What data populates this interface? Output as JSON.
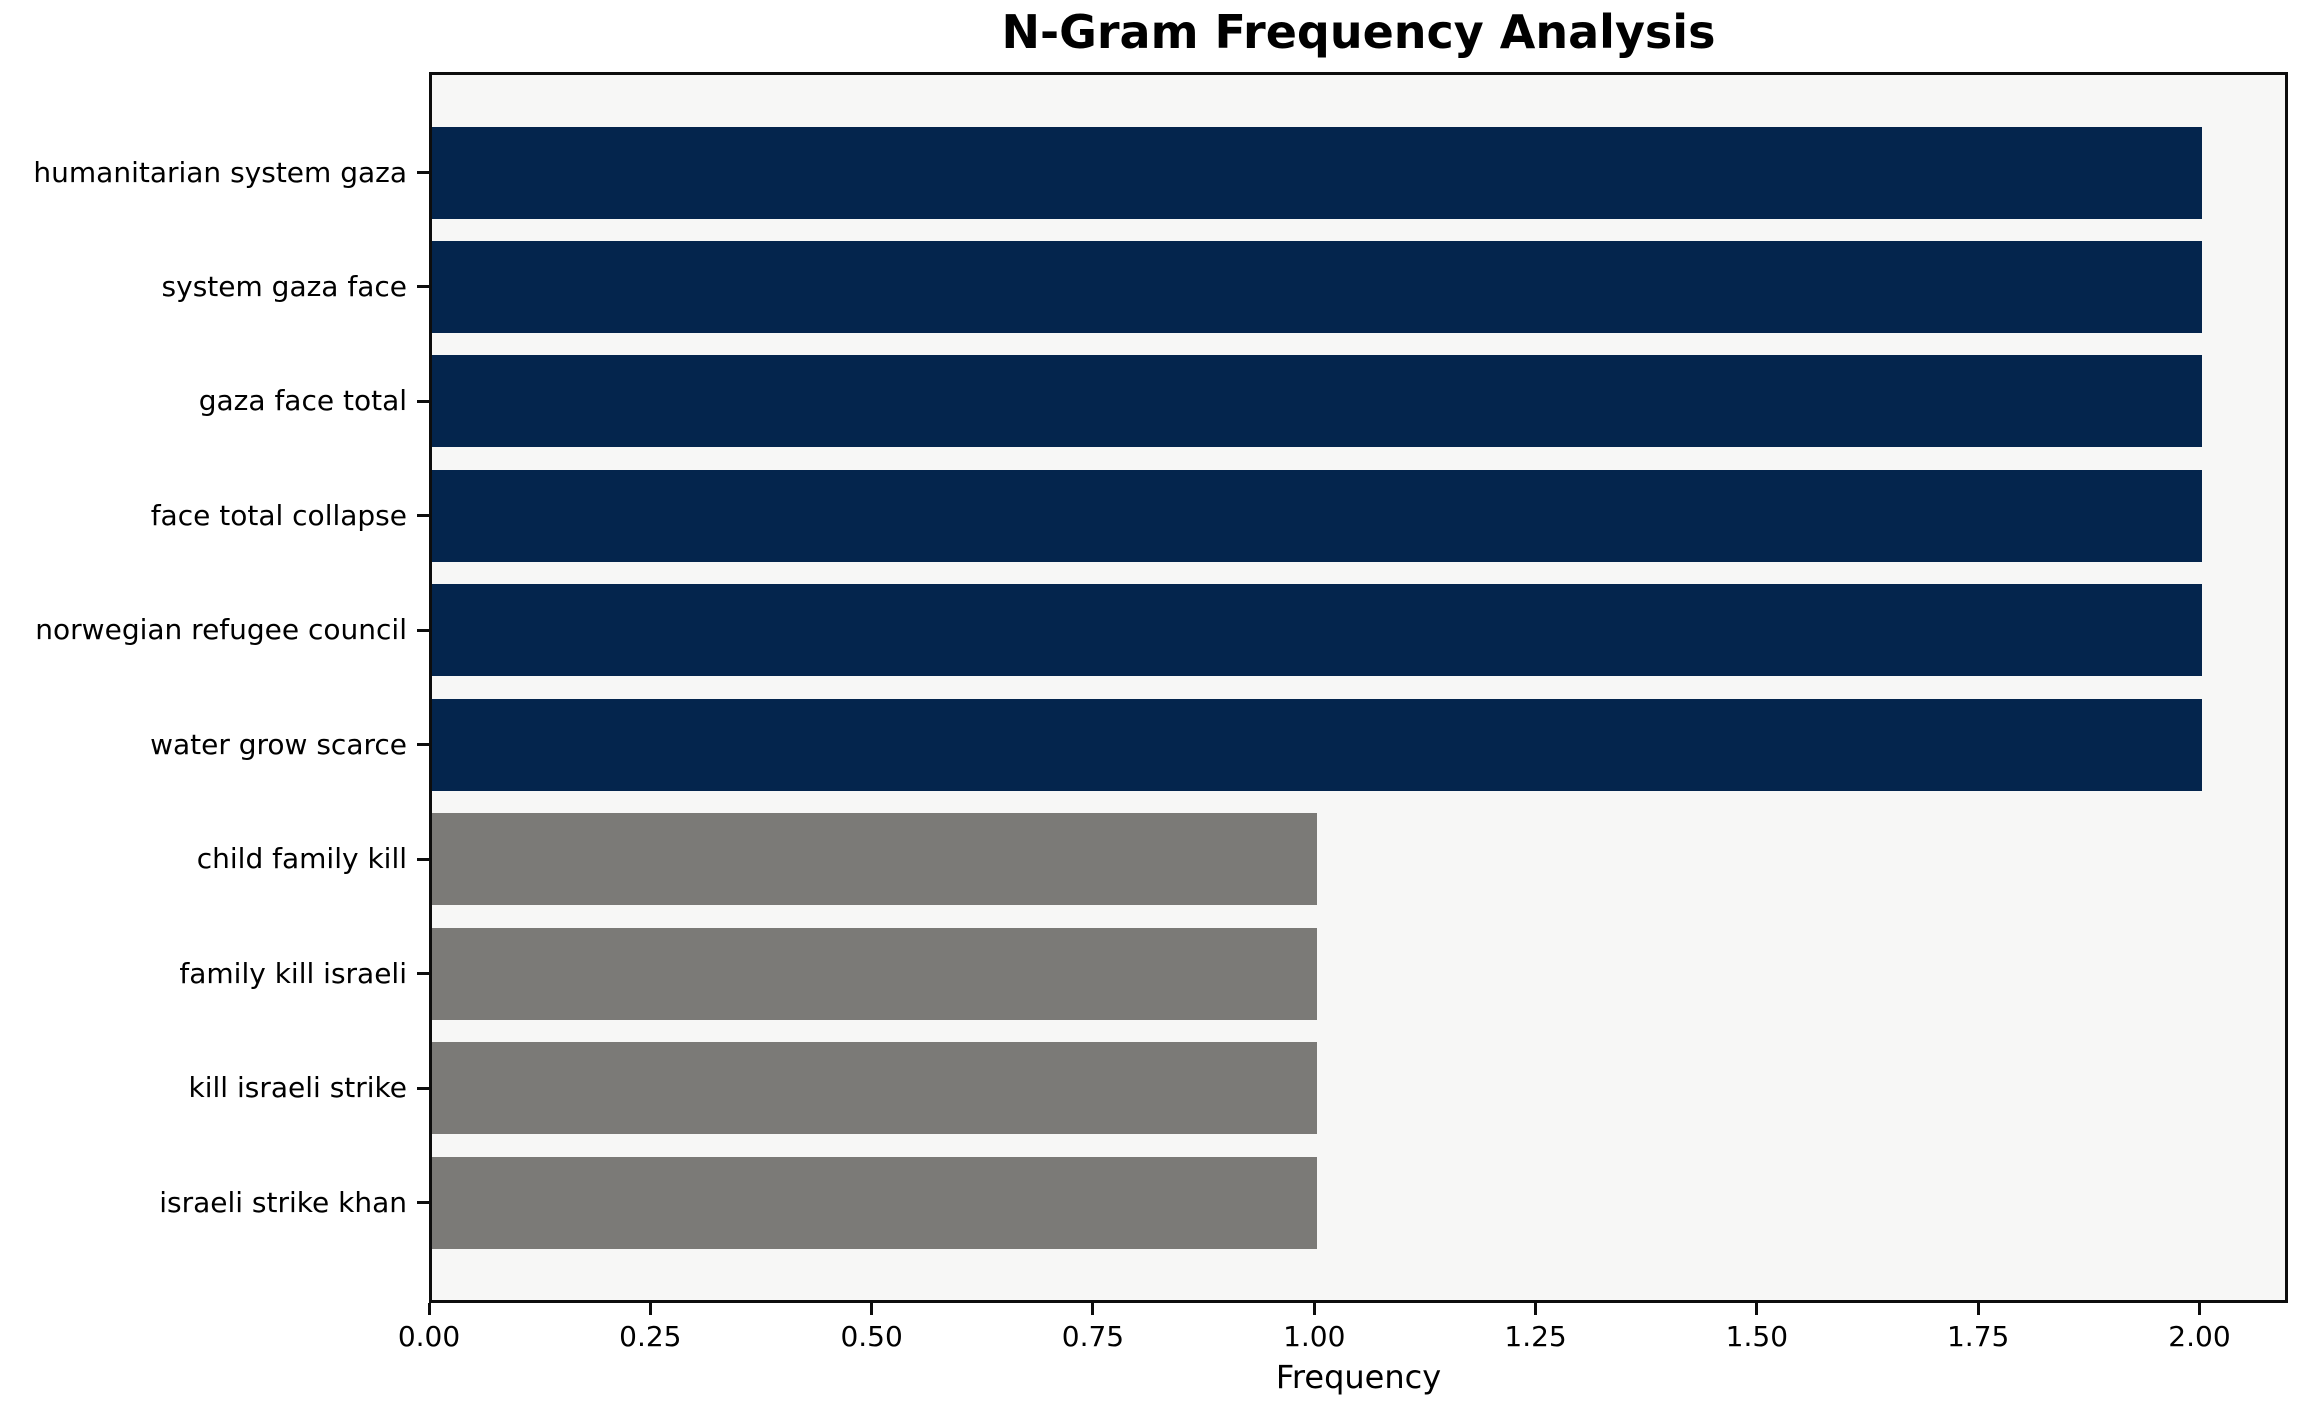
{
  "title": "N-Gram Frequency Analysis",
  "chart_data": {
    "type": "bar",
    "orientation": "horizontal",
    "title": "N-Gram Frequency Analysis",
    "xlabel": "Frequency",
    "ylabel": "",
    "categories": [
      "humanitarian system gaza",
      "system gaza face",
      "gaza face total",
      "face total collapse",
      "norwegian refugee council",
      "water grow scarce",
      "child family kill",
      "family kill israeli",
      "kill israeli strike",
      "israeli strike khan"
    ],
    "values": [
      2,
      2,
      2,
      2,
      2,
      2,
      1,
      1,
      1,
      1
    ],
    "bar_colors": [
      "#04254d",
      "#04254d",
      "#04254d",
      "#04254d",
      "#04254d",
      "#04254d",
      "#7b7a77",
      "#7b7a77",
      "#7b7a77",
      "#7b7a77"
    ],
    "xlim": [
      0,
      2.1
    ],
    "xticks": [
      0,
      0.25,
      0.5,
      0.75,
      1.0,
      1.25,
      1.5,
      1.75,
      2.0
    ],
    "xtick_labels": [
      "0.00",
      "0.25",
      "0.50",
      "0.75",
      "1.00",
      "1.25",
      "1.50",
      "1.75",
      "2.00"
    ],
    "grid": false,
    "legend": null,
    "plot_background": "#f7f7f6",
    "figure_background": "#ffffff",
    "spine_color": "#0d0d0d"
  }
}
